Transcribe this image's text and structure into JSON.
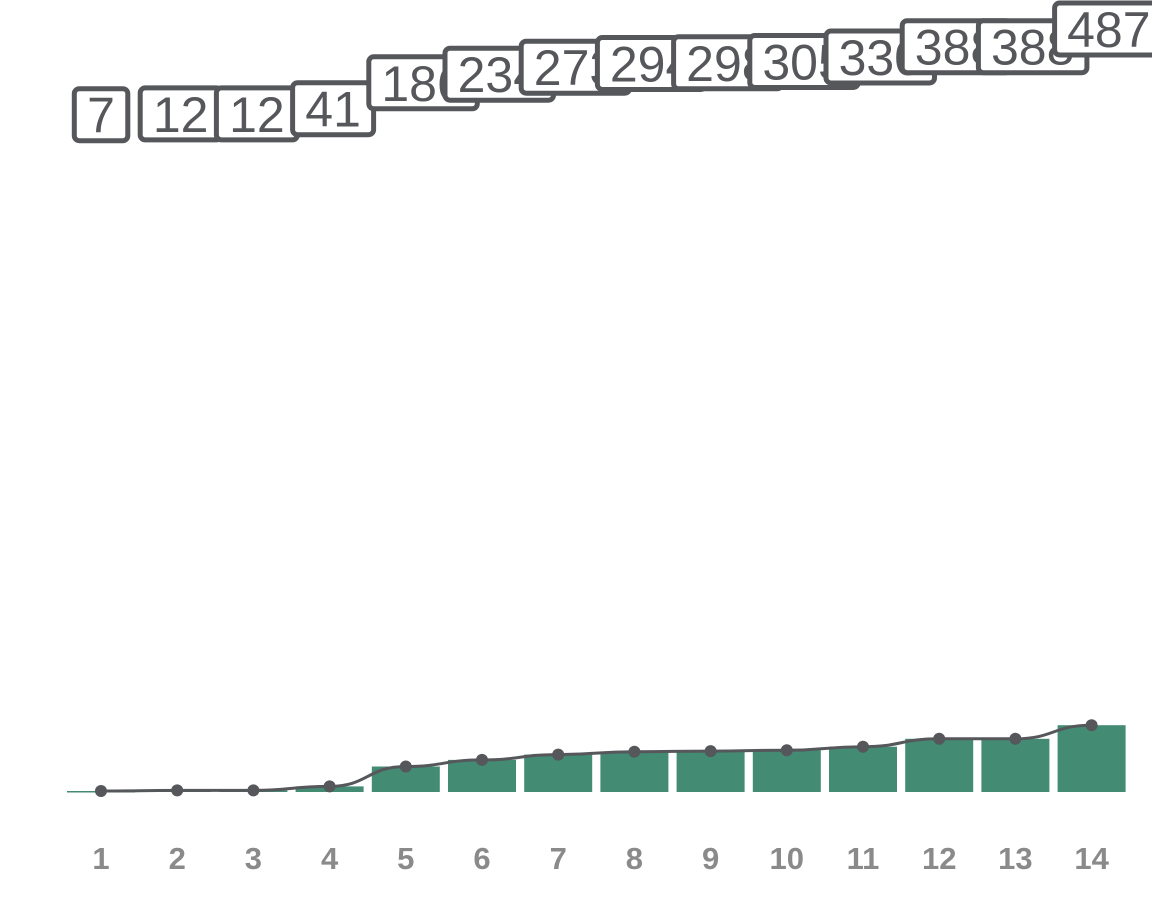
{
  "chart_data": {
    "type": "bar",
    "title": "",
    "xlabel": "",
    "ylabel": "",
    "categories": [
      "1",
      "2",
      "3",
      "4",
      "5",
      "6",
      "7",
      "8",
      "9",
      "10",
      "11",
      "12",
      "13",
      "14"
    ],
    "series": [
      {
        "type": "bar",
        "values": [
          7,
          12,
          12,
          41,
          186,
          234,
          273,
          294,
          298,
          305,
          330,
          388,
          388,
          487
        ]
      },
      {
        "type": "line",
        "values": [
          7,
          12,
          12,
          41,
          186,
          234,
          273,
          294,
          298,
          305,
          330,
          388,
          388,
          487
        ]
      }
    ],
    "data_labels": [
      "7",
      "12",
      "12",
      "41",
      "186",
      "234",
      "273",
      "294",
      "298",
      "305",
      "330",
      "388",
      "388",
      "487"
    ],
    "ylim": [
      0,
      4900
    ],
    "grid": false,
    "legend": "none",
    "colors": {
      "bar": "#448b73",
      "line": "#55575b",
      "tick_label": "#8a8a8a",
      "data_label": "#55575b"
    }
  }
}
